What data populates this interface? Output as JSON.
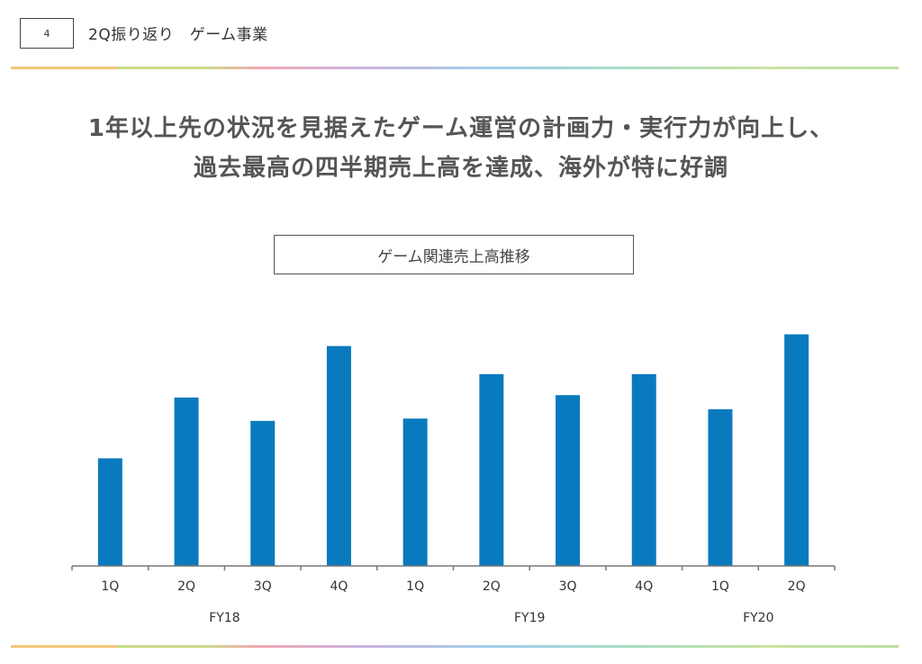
{
  "header": {
    "page_number": "4",
    "title": "2Q振り返り　ゲーム事業"
  },
  "headline": {
    "line1": "1年以上先の状況を見据えたゲーム運営の計画力・実行力が向上し、",
    "line2": "過去最高の四半期売上高を達成、海外が特に好調"
  },
  "colors": {
    "bar": "#0a7abf",
    "axis": "#777777",
    "text": "#333333"
  },
  "chart_data": {
    "type": "bar",
    "title": "ゲーム関連売上高推移",
    "categories": [
      "1Q",
      "2Q",
      "3Q",
      "4Q",
      "1Q",
      "2Q",
      "3Q",
      "4Q",
      "1Q",
      "2Q"
    ],
    "groups": [
      {
        "label": "FY18",
        "start": 0,
        "end": 3
      },
      {
        "label": "FY19",
        "start": 4,
        "end": 7
      },
      {
        "label": "FY20",
        "start": 8,
        "end": 9
      }
    ],
    "values": [
      46,
      72,
      62,
      94,
      63,
      82,
      73,
      82,
      67,
      99
    ],
    "ylim": [
      0,
      100
    ],
    "xlabel": "",
    "ylabel": "",
    "grid": false
  }
}
